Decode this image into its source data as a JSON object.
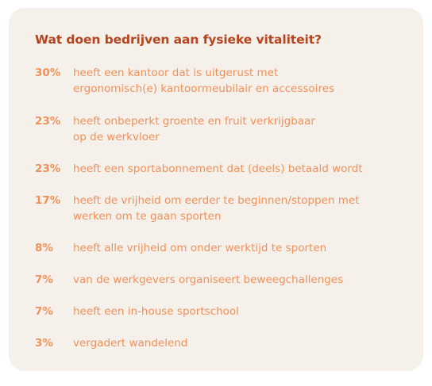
{
  "title": "Wat doen bedrijven aan fysieke vitaliteit?",
  "colors": {
    "card_background": "#f5f0ea",
    "title": "#b6441c",
    "accent": "#f0915a"
  },
  "stats": [
    {
      "percent": "30%",
      "lines": [
        "heeft een kantoor dat is uitgerust met",
        "ergonomisch(e) kantoormeubilair en accessoires"
      ]
    },
    {
      "percent": "23%",
      "lines": [
        "heeft onbeperkt groente en fruit verkrijgbaar",
        "op de werkvloer"
      ]
    },
    {
      "percent": "23%",
      "lines": [
        "heeft een sportabonnement dat (deels) betaald wordt"
      ]
    },
    {
      "percent": "17%",
      "lines": [
        "heeft de vrijheid om eerder te beginnen/stoppen met",
        "werken om te gaan sporten"
      ]
    },
    {
      "percent": "8%",
      "lines": [
        "heeft alle vrijheid om onder werktijd te sporten"
      ]
    },
    {
      "percent": "7%",
      "lines": [
        "van de werkgevers organiseert beweegchallenges"
      ]
    },
    {
      "percent": "7%",
      "lines": [
        "heeft een in-house sportschool"
      ]
    },
    {
      "percent": "3%",
      "lines": [
        "vergadert wandelend"
      ]
    }
  ]
}
